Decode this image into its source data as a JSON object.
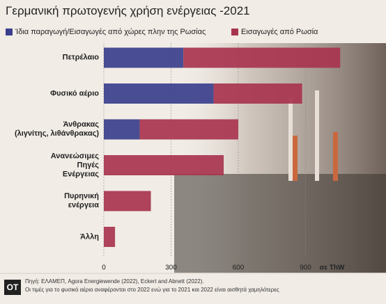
{
  "chart_data": {
    "type": "stacked_barh",
    "title": "Γερμανική πρωτογενής χρήση ενέργειας -2021",
    "categories": [
      "Πετρέλαιο",
      "Φυσικό αέριο",
      "Άνθρακας\n(λιγνίτης, λιθάνθρακας)",
      "Ανανεώσιμες\nΠηγές\nΕνέργειας",
      "Πυρηνική\nενέργεια",
      "Άλλη"
    ],
    "series": [
      {
        "name": "Ίδια παραγωγή/Εισαγωγές από χώρες πλην της Ρωσίας",
        "color": "#3b3f8c",
        "values": [
          355,
          490,
          160,
          0,
          0,
          0
        ]
      },
      {
        "name": "Εισαγωγές από Ρωσία",
        "color": "#a8344f",
        "values": [
          700,
          395,
          440,
          535,
          210,
          50
        ]
      }
    ],
    "xlim": [
      0,
      1250
    ],
    "xticks": [
      0,
      300,
      600,
      900
    ],
    "xlabel": "σε ThW",
    "grid": true,
    "logo": "OT",
    "source": "Πηγή: ΕΛΑΜΕΠ, Agora Energiewende (2022), Eckert and Abnett (2022).",
    "note": "Οι τιμές για το φυσικό αέριο αναφέρονται στο 2022 ενώ για το 2021 και 2022 είναι αισθητά χαμηλότερες"
  }
}
